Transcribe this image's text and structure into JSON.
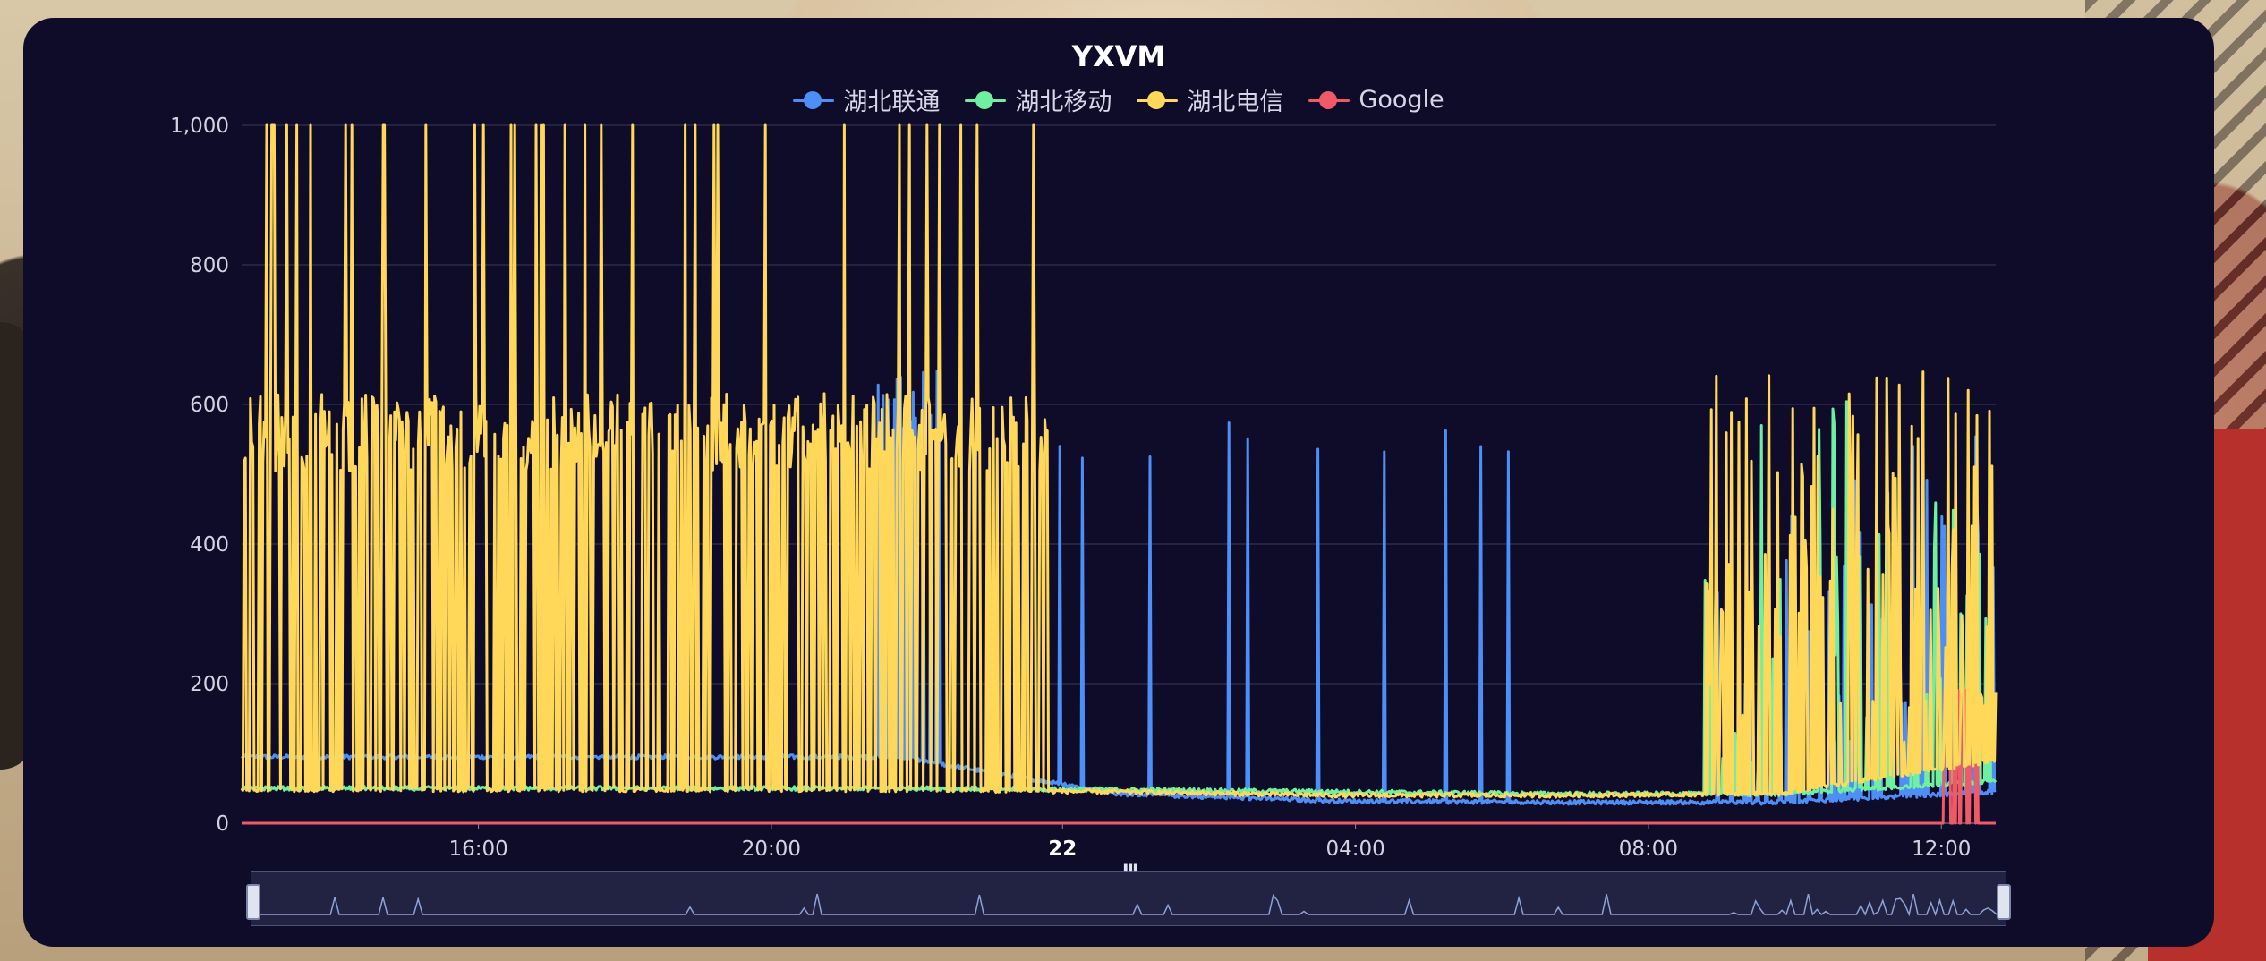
{
  "chart_data": {
    "type": "line",
    "title": "YXVM",
    "legend_position": "top-center",
    "grid": true,
    "ylim": [
      0,
      1000
    ],
    "y_ticks": [
      "1,000",
      "800",
      "600",
      "400",
      "200",
      "0"
    ],
    "x_ticks": [
      {
        "label": "16:00",
        "bold": false
      },
      {
        "label": "20:00",
        "bold": false
      },
      {
        "label": "22",
        "bold": true
      },
      {
        "label": "04:00",
        "bold": false
      },
      {
        "label": "08:00",
        "bold": false
      },
      {
        "label": "12:00",
        "bold": false
      }
    ],
    "x_range": [
      "12:45",
      "12:45 (+1 day)"
    ],
    "series": [
      {
        "name": "湖北联通",
        "color": "#4e8ef7",
        "baseline_ms": [
          95,
          95,
          95,
          95,
          42,
          32,
          30,
          30,
          45
        ],
        "spike_level_ms": 550
      },
      {
        "name": "湖北移动",
        "color": "#6ef0a0",
        "baseline_ms": [
          50,
          50,
          50,
          50,
          48,
          45,
          42,
          42,
          60
        ],
        "spike_level_ms": 600
      },
      {
        "name": "湖北电信",
        "color": "#ffd85a",
        "baseline_ms": [
          48,
          48,
          48,
          48,
          45,
          40,
          40,
          42,
          90
        ],
        "spike_level_ms": 560,
        "timeout_ms": 1000
      },
      {
        "name": "Google",
        "color": "#f05a66",
        "baseline_ms": [
          0,
          0,
          0,
          0,
          0,
          0,
          0,
          0,
          0
        ],
        "spike_level_ms": 190
      }
    ],
    "colors": {
      "background": "#0f0c29",
      "grid": "#3a3a5c",
      "axis_text": "#d2d2e2"
    }
  },
  "zoom": {
    "label": "data-zoom slider",
    "range_percent": [
      0,
      100
    ]
  }
}
